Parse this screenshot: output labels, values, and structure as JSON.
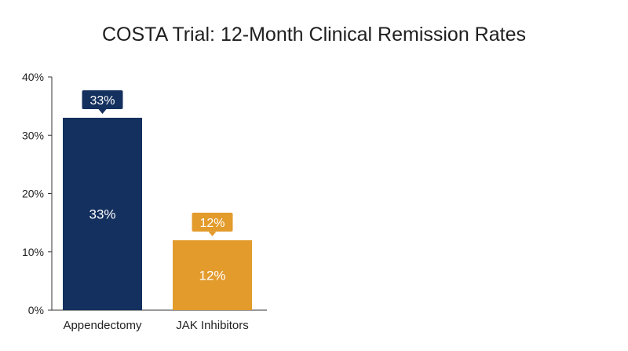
{
  "chart_data": {
    "type": "bar",
    "title": "COSTA Trial: 12-Month Clinical Remission Rates",
    "xlabel": "",
    "ylabel": "",
    "categories": [
      "Appendectomy",
      "JAK Inhibitors"
    ],
    "values": [
      33,
      12
    ],
    "value_labels": [
      "33%",
      "12%"
    ],
    "colors": [
      "#14305e",
      "#e39b2c"
    ],
    "ylim": [
      0,
      40
    ],
    "yticks": [
      0,
      10,
      20,
      30,
      40
    ],
    "ytick_labels": [
      "0%",
      "10%",
      "20%",
      "30%",
      "40%"
    ],
    "grid": false,
    "legend": "none"
  }
}
